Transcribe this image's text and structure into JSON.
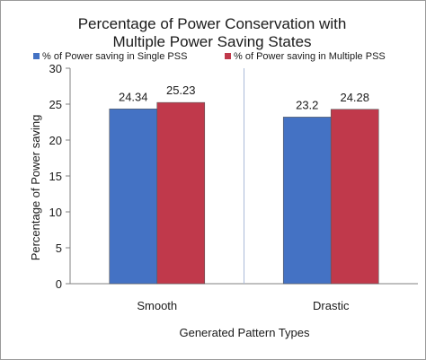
{
  "chart_data": {
    "type": "bar",
    "title_lines": [
      "Percentage of Power Conservation with",
      "Multiple Power Saving States"
    ],
    "categories": [
      "Smooth",
      "Drastic"
    ],
    "series": [
      {
        "name": "% of Power saving in Single PSS",
        "values": [
          24.34,
          23.2
        ],
        "labels": [
          "24.34",
          "23.2"
        ],
        "color": "#4472c4"
      },
      {
        "name": "% of Power saving in Multiple PSS",
        "values": [
          25.23,
          24.28
        ],
        "labels": [
          "25.23",
          "24.28"
        ],
        "color": "#c0394b"
      }
    ],
    "xlabel": "Generated Pattern Types",
    "ylabel": "Percentage  of  Power saving",
    "ylim": [
      0,
      30
    ],
    "yticks": [
      0,
      5,
      10,
      15,
      20,
      25,
      30
    ],
    "ytick_labels": [
      "0",
      "5",
      "10",
      "15",
      "20",
      "25",
      "30"
    ],
    "grid": false,
    "legend_position": "top",
    "separator_color": "#aabbd9"
  }
}
